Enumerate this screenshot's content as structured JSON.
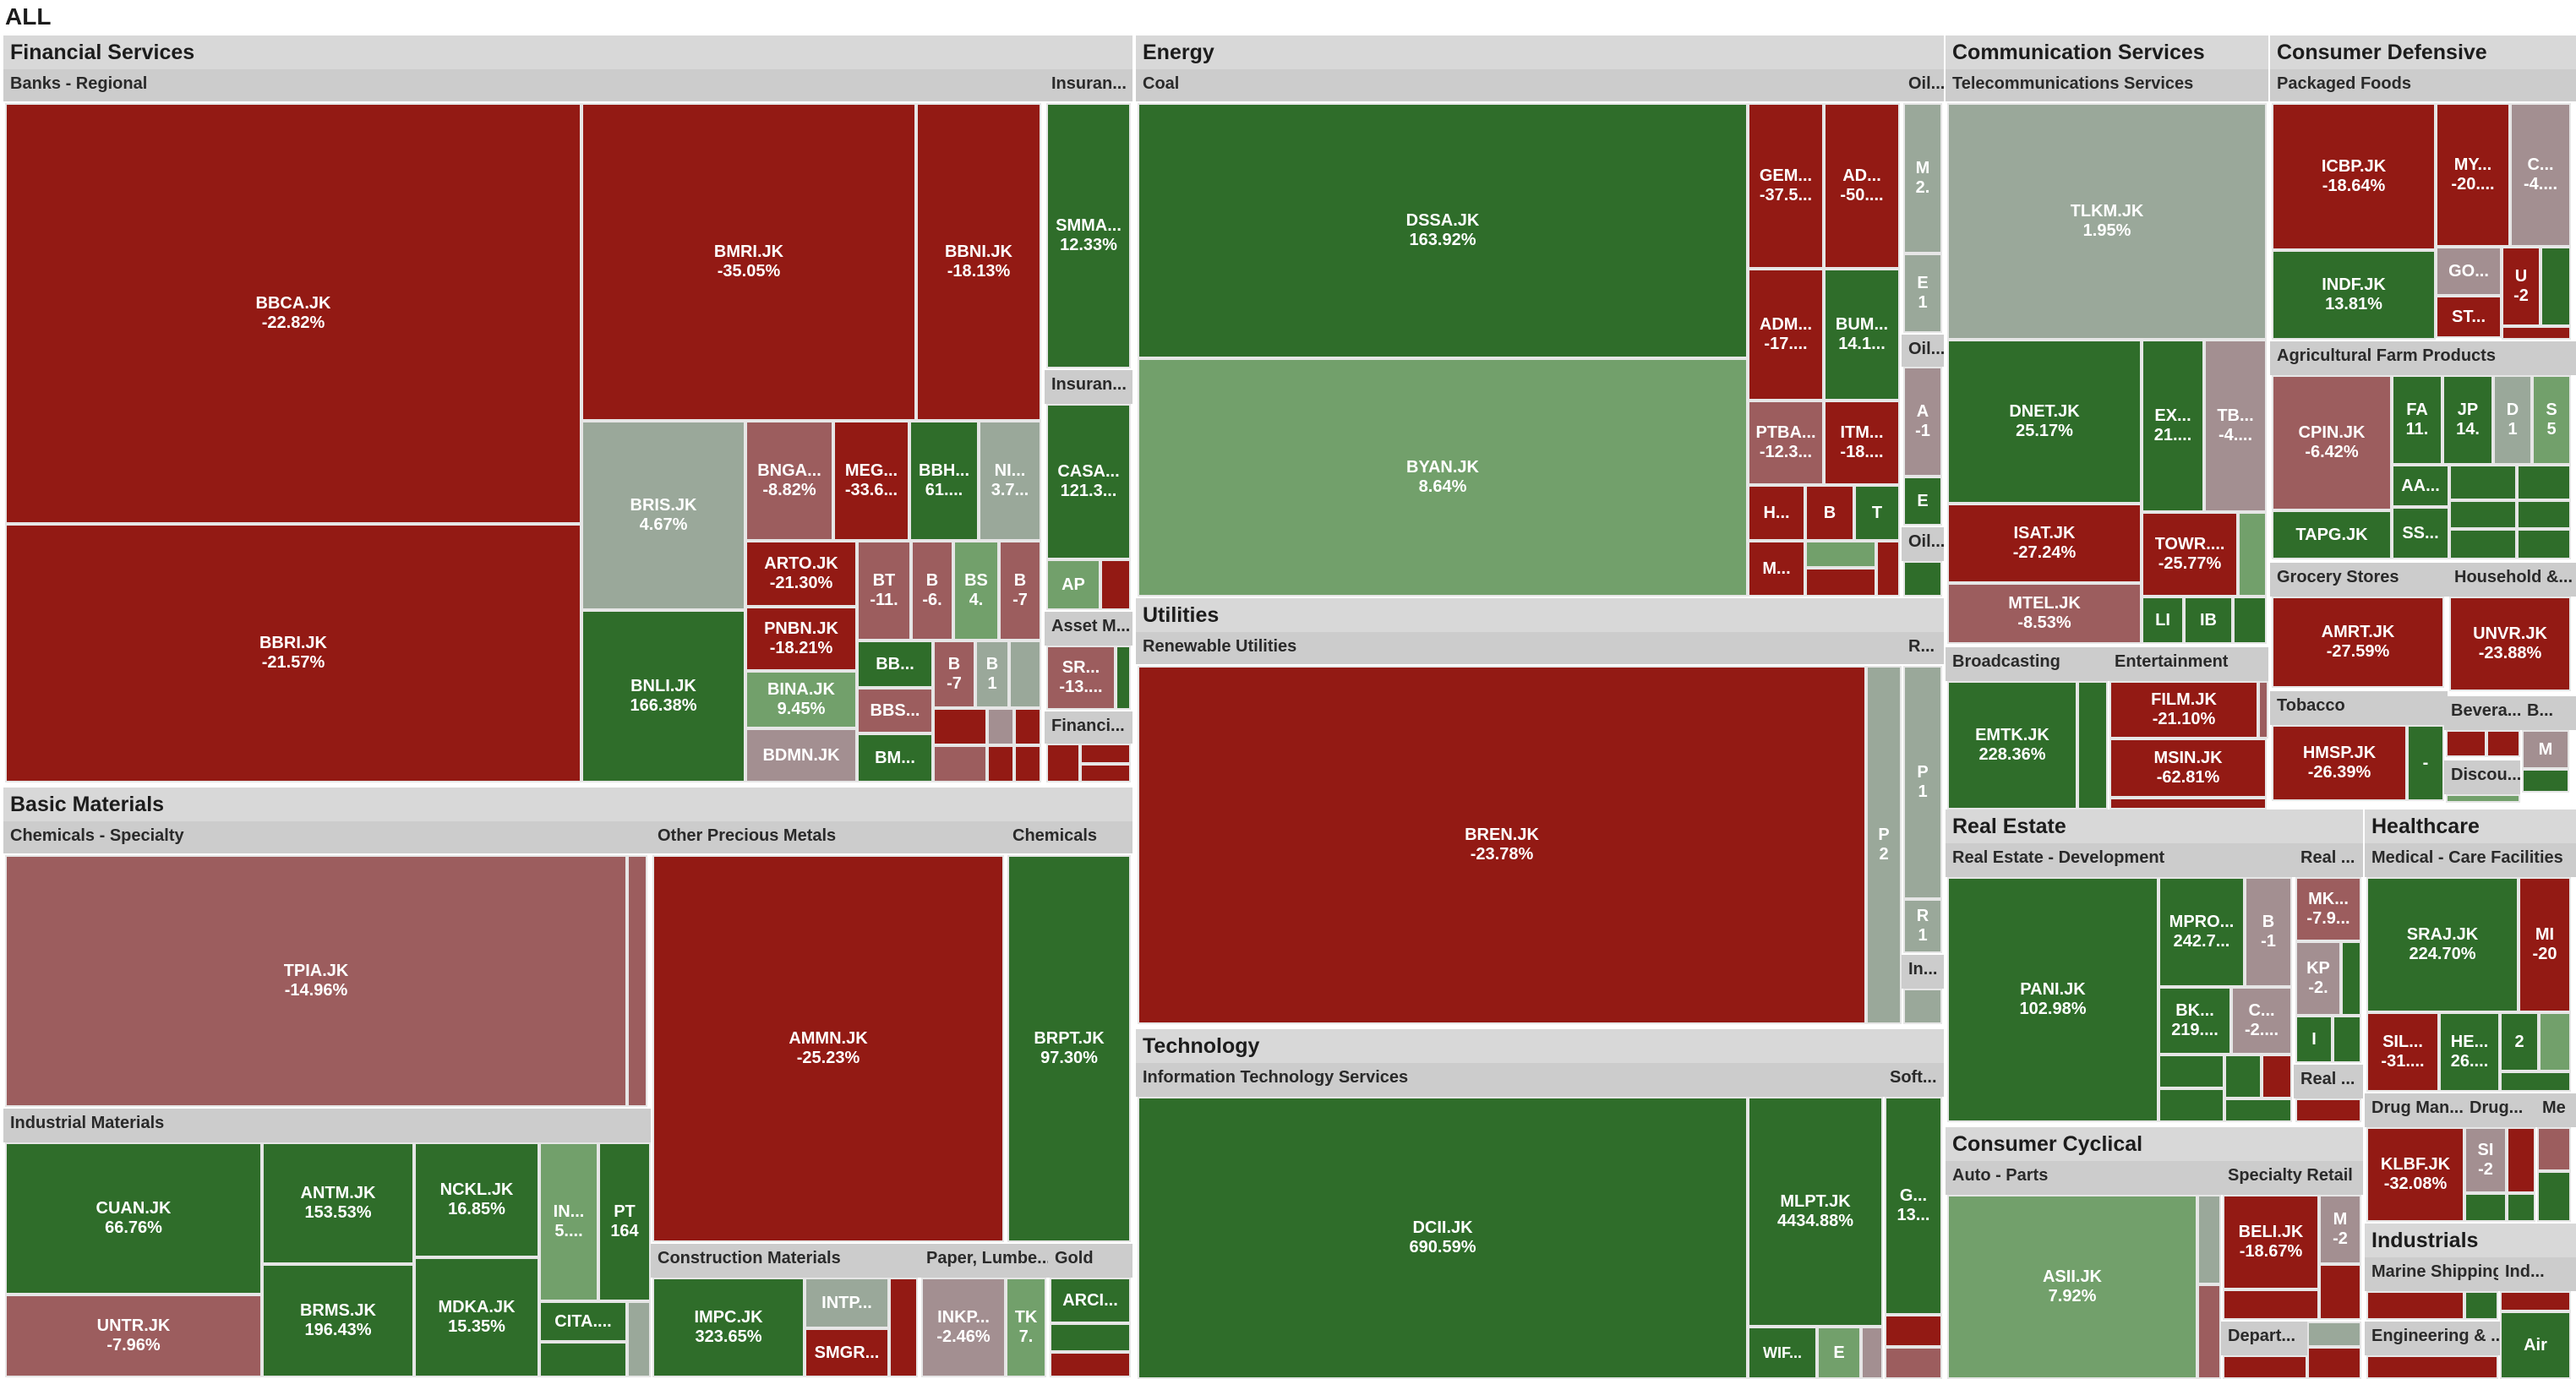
{
  "chart_data": {
    "type": "treemap",
    "title": "ALL",
    "colors": {
      "strong_neg": "#931a14",
      "mid_neg": "#9c5d5e",
      "weak_neg": "#a38f91",
      "flat": "#9aa89a",
      "weak_pos": "#72a06b",
      "strong_pos": "#2f6d2a"
    },
    "sectors": [
      {
        "name": "Financial Services",
        "industries": [
          {
            "name": "Banks - Regional",
            "stocks": [
              {
                "symbol": "BBCA.JK",
                "change": "-22.82%"
              },
              {
                "symbol": "BBRI.JK",
                "change": "-21.57%"
              },
              {
                "symbol": "BMRI.JK",
                "change": "-35.05%"
              },
              {
                "symbol": "BBNI.JK",
                "change": "-18.13%"
              },
              {
                "symbol": "BRIS.JK",
                "change": "4.67%"
              },
              {
                "symbol": "BNLI.JK",
                "change": "166.38%"
              },
              {
                "symbol": "BNGA...",
                "change": "-8.82%"
              },
              {
                "symbol": "MEG...",
                "change": "-33.6..."
              },
              {
                "symbol": "BBH...",
                "change": "61...."
              },
              {
                "symbol": "NI...",
                "change": "3.7..."
              },
              {
                "symbol": "ARTO.JK",
                "change": "-21.30%"
              },
              {
                "symbol": "PNBN.JK",
                "change": "-18.21%"
              },
              {
                "symbol": "BINA.JK",
                "change": "9.45%"
              },
              {
                "symbol": "BDMN.JK",
                "change": ""
              },
              {
                "symbol": "BT",
                "change": "-11."
              },
              {
                "symbol": "B",
                "change": "-6."
              },
              {
                "symbol": "BS",
                "change": "4."
              },
              {
                "symbol": "B",
                "change": "-7"
              },
              {
                "symbol": "BB...",
                "change": ""
              },
              {
                "symbol": "B",
                "change": "-7"
              },
              {
                "symbol": "B",
                "change": "1"
              },
              {
                "symbol": "BBS...",
                "change": ""
              },
              {
                "symbol": "BM...",
                "change": ""
              }
            ]
          },
          {
            "name": "Insuran...",
            "stocks": [
              {
                "symbol": "SMMA...",
                "change": "12.33%"
              }
            ]
          },
          {
            "name": "Insuran...",
            "stocks": [
              {
                "symbol": "CASA...",
                "change": "121.3..."
              },
              {
                "symbol": "AP",
                "change": ""
              }
            ]
          },
          {
            "name": "Asset M...",
            "stocks": [
              {
                "symbol": "SR...",
                "change": "-13...."
              }
            ]
          },
          {
            "name": "Financi...",
            "stocks": []
          }
        ]
      },
      {
        "name": "Basic Materials",
        "industries": [
          {
            "name": "Chemicals - Specialty",
            "stocks": [
              {
                "symbol": "TPIA.JK",
                "change": "-14.96%"
              }
            ]
          },
          {
            "name": "Other Precious Metals",
            "stocks": [
              {
                "symbol": "AMMN.JK",
                "change": "-25.23%"
              }
            ]
          },
          {
            "name": "Chemicals",
            "stocks": [
              {
                "symbol": "BRPT.JK",
                "change": "97.30%"
              }
            ]
          },
          {
            "name": "Industrial Materials",
            "stocks": [
              {
                "symbol": "CUAN.JK",
                "change": "66.76%"
              },
              {
                "symbol": "UNTR.JK",
                "change": "-7.96%"
              },
              {
                "symbol": "ANTM.JK",
                "change": "153.53%"
              },
              {
                "symbol": "BRMS.JK",
                "change": "196.43%"
              },
              {
                "symbol": "NCKL.JK",
                "change": "16.85%"
              },
              {
                "symbol": "MDKA.JK",
                "change": "15.35%"
              },
              {
                "symbol": "IN...",
                "change": "5...."
              },
              {
                "symbol": "PT",
                "change": "164"
              },
              {
                "symbol": "CITA....",
                "change": ""
              }
            ]
          },
          {
            "name": "Construction Materials",
            "stocks": [
              {
                "symbol": "IMPC.JK",
                "change": "323.65%"
              },
              {
                "symbol": "INTP...",
                "change": ""
              },
              {
                "symbol": "SMGR...",
                "change": ""
              }
            ]
          },
          {
            "name": "Paper, Lumbe...",
            "stocks": [
              {
                "symbol": "INKP...",
                "change": "-2.46%"
              },
              {
                "symbol": "TK",
                "change": "7."
              }
            ]
          },
          {
            "name": "Gold",
            "stocks": [
              {
                "symbol": "ARCI...",
                "change": ""
              }
            ]
          }
        ]
      },
      {
        "name": "Energy",
        "industries": [
          {
            "name": "Coal",
            "stocks": [
              {
                "symbol": "DSSA.JK",
                "change": "163.92%"
              },
              {
                "symbol": "BYAN.JK",
                "change": "8.64%"
              },
              {
                "symbol": "GEM...",
                "change": "-37.5..."
              },
              {
                "symbol": "AD...",
                "change": "-50...."
              },
              {
                "symbol": "ADM...",
                "change": "-17...."
              },
              {
                "symbol": "BUM...",
                "change": "14.1..."
              },
              {
                "symbol": "PTBA...",
                "change": "-12.3..."
              },
              {
                "symbol": "ITM...",
                "change": "-18...."
              },
              {
                "symbol": "H...",
                "change": ""
              },
              {
                "symbol": "B",
                "change": ""
              },
              {
                "symbol": "T",
                "change": ""
              },
              {
                "symbol": "M...",
                "change": ""
              }
            ]
          },
          {
            "name": "Oil...",
            "stocks": [
              {
                "symbol": "M",
                "change": "2."
              },
              {
                "symbol": "E",
                "change": "1"
              }
            ]
          },
          {
            "name": "Oil...",
            "stocks": [
              {
                "symbol": "A",
                "change": "-1"
              },
              {
                "symbol": "E",
                "change": ""
              }
            ]
          },
          {
            "name": "Oil...",
            "stocks": []
          }
        ]
      },
      {
        "name": "Utilities",
        "industries": [
          {
            "name": "Renewable Utilities",
            "stocks": [
              {
                "symbol": "BREN.JK",
                "change": "-23.78%"
              },
              {
                "symbol": "P",
                "change": "2"
              }
            ]
          },
          {
            "name": "R...",
            "stocks": [
              {
                "symbol": "P",
                "change": "1"
              },
              {
                "symbol": "R",
                "change": "1"
              }
            ]
          },
          {
            "name": "In...",
            "stocks": []
          }
        ]
      },
      {
        "name": "Technology",
        "industries": [
          {
            "name": "Information Technology Services",
            "stocks": [
              {
                "symbol": "DCII.JK",
                "change": "690.59%"
              },
              {
                "symbol": "MLPT.JK",
                "change": "4434.88%"
              },
              {
                "symbol": "WIF...",
                "change": ""
              },
              {
                "symbol": "E",
                "change": ""
              }
            ]
          },
          {
            "name": "Soft...",
            "stocks": [
              {
                "symbol": "G...",
                "change": "13..."
              }
            ]
          }
        ]
      },
      {
        "name": "Communication Services",
        "industries": [
          {
            "name": "Telecommunications Services",
            "stocks": [
              {
                "symbol": "TLKM.JK",
                "change": "1.95%"
              },
              {
                "symbol": "DNET.JK",
                "change": "25.17%"
              },
              {
                "symbol": "EX...",
                "change": "21...."
              },
              {
                "symbol": "TB...",
                "change": "-4...."
              },
              {
                "symbol": "ISAT.JK",
                "change": "-27.24%"
              },
              {
                "symbol": "TOWR....",
                "change": "-25.77%"
              },
              {
                "symbol": "MTEL.JK",
                "change": "-8.53%"
              },
              {
                "symbol": "LI",
                "change": ""
              },
              {
                "symbol": "IB",
                "change": ""
              }
            ]
          },
          {
            "name": "Broadcasting",
            "stocks": [
              {
                "symbol": "EMTK.JK",
                "change": "228.36%"
              }
            ]
          },
          {
            "name": "Entertainment",
            "stocks": [
              {
                "symbol": "FILM.JK",
                "change": "-21.10%"
              },
              {
                "symbol": "MSIN.JK",
                "change": "-62.81%"
              }
            ]
          }
        ]
      },
      {
        "name": "Consumer Defensive",
        "industries": [
          {
            "name": "Packaged Foods",
            "stocks": [
              {
                "symbol": "ICBP.JK",
                "change": "-18.64%"
              },
              {
                "symbol": "MY...",
                "change": "-20...."
              },
              {
                "symbol": "C...",
                "change": "-4...."
              },
              {
                "symbol": "INDF.JK",
                "change": "13.81%"
              },
              {
                "symbol": "GO...",
                "change": ""
              },
              {
                "symbol": "ST...",
                "change": ""
              },
              {
                "symbol": "U",
                "change": "-2"
              }
            ]
          },
          {
            "name": "Agricultural Farm Products",
            "stocks": [
              {
                "symbol": "CPIN.JK",
                "change": "-6.42%"
              },
              {
                "symbol": "FA",
                "change": "11."
              },
              {
                "symbol": "JP",
                "change": "14."
              },
              {
                "symbol": "D",
                "change": "1"
              },
              {
                "symbol": "S",
                "change": "5"
              },
              {
                "symbol": "AA...",
                "change": ""
              },
              {
                "symbol": "TAPG.JK",
                "change": ""
              },
              {
                "symbol": "SS...",
                "change": ""
              }
            ]
          },
          {
            "name": "Grocery Stores",
            "stocks": [
              {
                "symbol": "AMRT.JK",
                "change": "-27.59%"
              }
            ]
          },
          {
            "name": "Household &...",
            "stocks": [
              {
                "symbol": "UNVR.JK",
                "change": "-23.88%"
              }
            ]
          },
          {
            "name": "Tobacco",
            "stocks": [
              {
                "symbol": "HMSP.JK",
                "change": "-26.39%"
              },
              {
                "symbol": "-",
                "change": ""
              }
            ]
          },
          {
            "name": "Bevera...",
            "stocks": []
          },
          {
            "name": "B...",
            "stocks": [
              {
                "symbol": "M",
                "change": ""
              }
            ]
          },
          {
            "name": "Discou...",
            "stocks": []
          }
        ]
      },
      {
        "name": "Real Estate",
        "industries": [
          {
            "name": "Real Estate - Development",
            "stocks": [
              {
                "symbol": "PANI.JK",
                "change": "102.98%"
              },
              {
                "symbol": "MPRO...",
                "change": "242.7..."
              },
              {
                "symbol": "B",
                "change": "-1"
              },
              {
                "symbol": "BK...",
                "change": "219...."
              },
              {
                "symbol": "C...",
                "change": "-2...."
              }
            ]
          },
          {
            "name": "Real ...",
            "stocks": [
              {
                "symbol": "MK...",
                "change": "-7.9..."
              },
              {
                "symbol": "KP",
                "change": "-2."
              },
              {
                "symbol": "I",
                "change": ""
              }
            ]
          },
          {
            "name": "Real ...",
            "stocks": []
          }
        ]
      },
      {
        "name": "Healthcare",
        "industries": [
          {
            "name": "Medical - Care Facilities",
            "stocks": [
              {
                "symbol": "SRAJ.JK",
                "change": "224.70%"
              },
              {
                "symbol": "MI",
                "change": "-20"
              },
              {
                "symbol": "SIL...",
                "change": "-31...."
              },
              {
                "symbol": "HE...",
                "change": "26...."
              },
              {
                "symbol": "2",
                "change": ""
              }
            ]
          },
          {
            "name": "Drug Man...",
            "stocks": [
              {
                "symbol": "KLBF.JK",
                "change": "-32.08%"
              },
              {
                "symbol": "SI",
                "change": "-2"
              }
            ]
          },
          {
            "name": "Drug...",
            "stocks": []
          },
          {
            "name": "Me",
            "stocks": []
          }
        ]
      },
      {
        "name": "Consumer Cyclical",
        "industries": [
          {
            "name": "Auto - Parts",
            "stocks": [
              {
                "symbol": "ASII.JK",
                "change": "7.92%"
              }
            ]
          },
          {
            "name": "Specialty Retail",
            "stocks": [
              {
                "symbol": "BELI.JK",
                "change": "-18.67%"
              },
              {
                "symbol": "M",
                "change": "-2"
              }
            ]
          },
          {
            "name": "Depart...",
            "stocks": []
          }
        ]
      },
      {
        "name": "Industrials",
        "industries": [
          {
            "name": "Marine Shipping",
            "stocks": []
          },
          {
            "name": "Ind...",
            "stocks": [
              {
                "symbol": "Air",
                "change": ""
              }
            ]
          },
          {
            "name": "Engineering & ...",
            "stocks": []
          }
        ]
      }
    ]
  }
}
